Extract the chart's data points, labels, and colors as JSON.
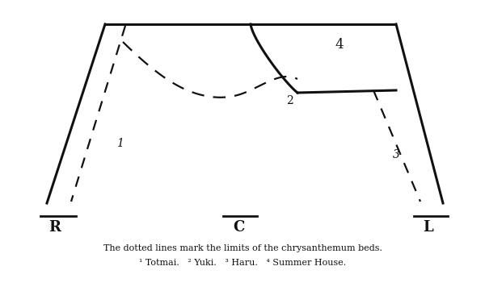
{
  "bg_color": "#ffffff",
  "line_color": "#111111",
  "fig_width": 6.0,
  "fig_height": 3.56,
  "dpi": 100,
  "caption_line1": "The dotted lines mark the limits of the chrysanthemum beds.",
  "caption_line2": "¹ Totmai.   ² Yuki.   ³ Haru.   ⁴ Summer House.",
  "label_R": "R",
  "label_C": "C",
  "label_L": "L"
}
